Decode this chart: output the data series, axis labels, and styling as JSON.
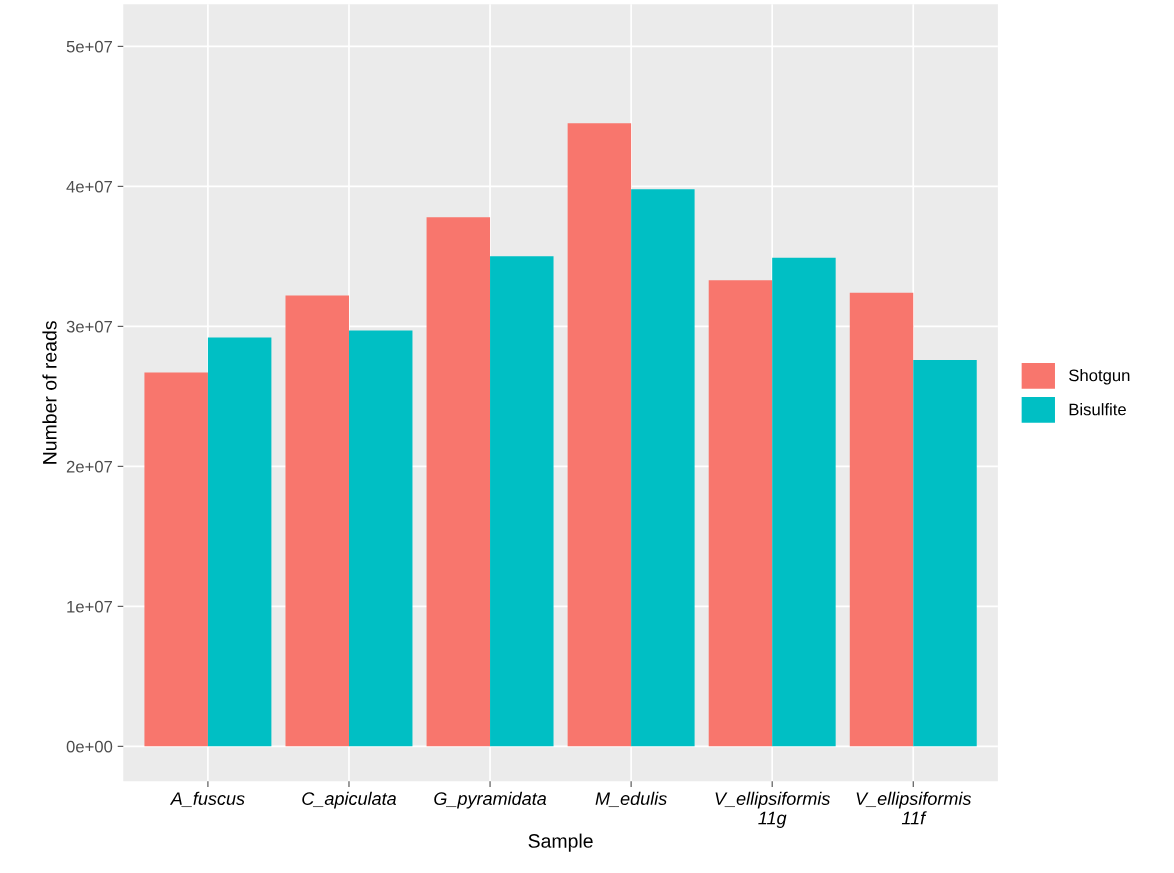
{
  "chart_data": {
    "type": "bar",
    "xlabel": "Sample",
    "ylabel": "Number of reads",
    "categories": [
      "A_fuscus",
      "C_apiculata",
      "G_pyramidata",
      "M_edulis",
      "V_ellipsiformis\n11g",
      "V_ellipsiformis\n11f"
    ],
    "series": [
      {
        "name": "Shotgun",
        "color": "#f8766d",
        "values": [
          26700000,
          32200000,
          37800000,
          44500000,
          33300000,
          32400000
        ]
      },
      {
        "name": "Bisulfite",
        "color": "#00bfc4",
        "values": [
          29200000,
          29700000,
          35000000,
          39800000,
          34900000,
          27600000
        ]
      }
    ],
    "ylim": [
      -2500000,
      53000000
    ],
    "yticks": [
      {
        "value": 0,
        "label": "0e+00"
      },
      {
        "value": 10000000,
        "label": "1e+07"
      },
      {
        "value": 20000000,
        "label": "2e+07"
      },
      {
        "value": 30000000,
        "label": "3e+07"
      },
      {
        "value": 40000000,
        "label": "4e+07"
      },
      {
        "value": 50000000,
        "label": "5e+07"
      }
    ],
    "grid": true,
    "legend": "right"
  }
}
